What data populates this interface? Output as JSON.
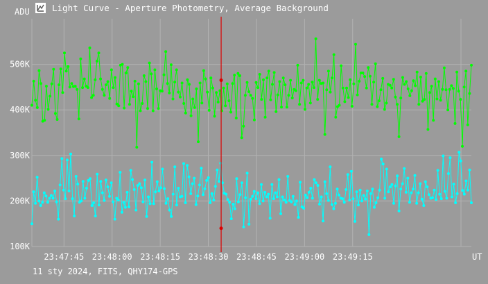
{
  "window": {
    "title": "Light Curve - Aperture Photometry, Average Background",
    "icon": "graph-app-icon"
  },
  "footer": {
    "caption": "11 sty 2024, FITS, QHY174-GPS"
  },
  "colors": {
    "background": "#9b9b9b",
    "grid": "#b3b3b3",
    "series_green": "#00ff00",
    "series_cyan": "#00ffff",
    "cursor": "#dd0000"
  },
  "chart_data": {
    "type": "line",
    "ylabel": "ADU",
    "xlabel": "UT",
    "xlim": [
      "23:47:35",
      "23:49:52"
    ],
    "ylim": [
      100000,
      600000
    ],
    "grid": true,
    "y_ticks": [
      {
        "value": 100000,
        "label": "100K"
      },
      {
        "value": 200000,
        "label": "200K"
      },
      {
        "value": 300000,
        "label": "300K"
      },
      {
        "value": 400000,
        "label": "400K"
      },
      {
        "value": 500000,
        "label": "500K"
      }
    ],
    "x_ticks": [
      "23:47:45",
      "23:48:00",
      "23:48:15",
      "23:48:30",
      "23:48:45",
      "23:49:00",
      "23:49:15"
    ],
    "cursor": {
      "time": "23:48:34",
      "values": [
        465000,
        140000
      ]
    },
    "series": [
      {
        "color": "#00ff00",
        "values": [
          410,
          463,
          421,
          405,
          486,
          458,
          375,
          377,
          452,
          401,
          430,
          457,
          489,
          392,
          379,
          455,
          490,
          438,
          525,
          485,
          495,
          450,
          458,
          451,
          452,
          445,
          380,
          512,
          449,
          468,
          452,
          449,
          536,
          427,
          432,
          466,
          507,
          525,
          468,
          445,
          432,
          455,
          462,
          425,
          488,
          449,
          471,
          413,
          409,
          498,
          500,
          404,
          481,
          493,
          412,
          441,
          429,
          463,
          318,
          457,
          398,
          414,
          475,
          462,
          403,
          503,
          479,
          398,
          488,
          446,
          403,
          442,
          441,
          477,
          528,
          458,
          437,
          499,
          424,
          461,
          488,
          439,
          428,
          459,
          414,
          393,
          466,
          456,
          387,
          424,
          405,
          446,
          330,
          459,
          415,
          486,
          468,
          439,
          399,
          470,
          448,
          386,
          438,
          417,
          442,
          398,
          448,
          409,
          457,
          420,
          395,
          458,
          476,
          382,
          480,
          475,
          339,
          364,
          432,
          460,
          440,
          432,
          425,
          378,
          460,
          449,
          478,
          423,
          466,
          384,
          470,
          485,
          422,
          456,
          482,
          396,
          433,
          462,
          406,
          470,
          455,
          406,
          432,
          465,
          426,
          445,
          442,
          498,
          412,
          459,
          465,
          401,
          448,
          456,
          415,
          461,
          449,
          556,
          423,
          465,
          458,
          459,
          346,
          444,
          485,
          439,
          470,
          521,
          384,
          407,
          410,
          497,
          448,
          418,
          448,
          427,
          466,
          408,
          457,
          544,
          433,
          463,
          481,
          481,
          473,
          448,
          493,
          474,
          412,
          461,
          501,
          407,
          420,
          444,
          469,
          401,
          415,
          456,
          454,
          448,
          467,
          428,
          412,
          341,
          426,
          471,
          456,
          462,
          446,
          431,
          442,
          464,
          453,
          483,
          412,
          472,
          419,
          423,
          480,
          357,
          438,
          452,
          377,
          468,
          424,
          462,
          421,
          445,
          492,
          444,
          400,
          445,
          453,
          447,
          370,
          483,
          441,
          423,
          320,
          450,
          485,
          367,
          436,
          498
        ],
        "name": ""
      },
      {
        "color": "#00ffff",
        "values": [
          150,
          220,
          195,
          252,
          200,
          190,
          197,
          218,
          211,
          197,
          206,
          212,
          206,
          222,
          198,
          160,
          235,
          293,
          224,
          205,
          290,
          222,
          303,
          205,
          167,
          254,
          237,
          197,
          200,
          243,
          206,
          228,
          245,
          249,
          190,
          196,
          167,
          259,
          191,
          243,
          218,
          201,
          246,
          231,
          210,
          240,
          198,
          160,
          206,
          202,
          263,
          175,
          197,
          186,
          219,
          187,
          267,
          247,
          225,
          180,
          234,
          238,
          229,
          198,
          246,
          166,
          209,
          194,
          285,
          194,
          220,
          242,
          222,
          229,
          270,
          227,
          195,
          205,
          180,
          166,
          215,
          275,
          191,
          228,
          209,
          210,
          282,
          196,
          278,
          253,
          216,
          238,
          250,
          192,
          211,
          235,
          272,
          214,
          227,
          245,
          251,
          196,
          216,
          202,
          232,
          268,
          243,
          283,
          240,
          217,
          215,
          203,
          197,
          161,
          193,
          183,
          249,
          198,
          214,
          240,
          143,
          207,
          261,
          149,
          204,
          210,
          221,
          205,
          218,
          194,
          236,
          200,
          219,
          209,
          215,
          162,
          236,
          205,
          218,
          209,
          247,
          172,
          209,
          202,
          197,
          254,
          201,
          198,
          210,
          192,
          200,
          164,
          241,
          187,
          184,
          213,
          207,
          219,
          228,
          206,
          247,
          240,
          234,
          193,
          209,
          156,
          242,
          216,
          201,
          275,
          192,
          183,
          195,
          226,
          213,
          206,
          205,
          197,
          225,
          258,
          202,
          265,
          205,
          155,
          220,
          191,
          224,
          200,
          212,
          204,
          222,
          126,
          216,
          226,
          186,
          196,
          207,
          224,
          292,
          281,
          206,
          270,
          220,
          231,
          236,
          195,
          233,
          255,
          178,
          226,
          238,
          271,
          219,
          250,
          197,
          218,
          226,
          256,
          195,
          218,
          238,
          204,
          190,
          242,
          231,
          214,
          206,
          207,
          224,
          203,
          267,
          215,
          205,
          299,
          221,
          206,
          260,
          295,
          209,
          237,
          196,
          216,
          307,
          288,
          223,
          215,
          244,
          224,
          268,
          196
        ],
        "name": ""
      }
    ]
  }
}
